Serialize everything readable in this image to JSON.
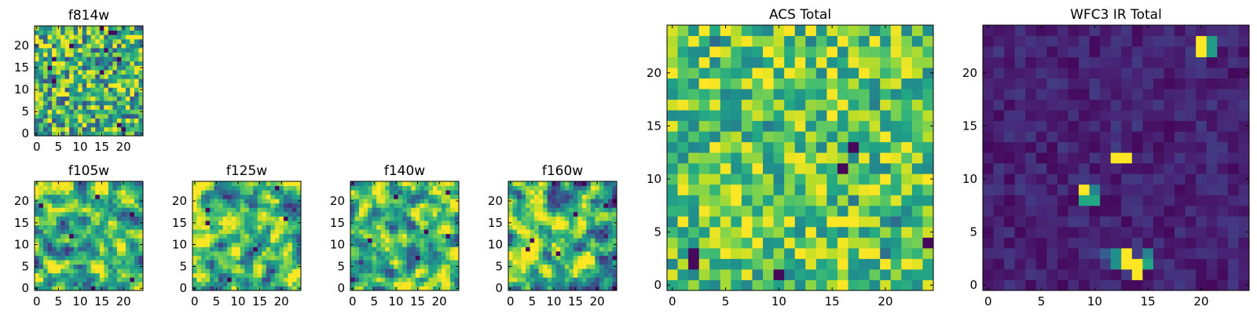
{
  "chart_data": [
    {
      "type": "heatmap",
      "id": "f814w",
      "title": "f814w",
      "shape": [
        25,
        25
      ],
      "colormap": "viridis",
      "pattern": "noise",
      "xlim": [
        -0.5,
        24.5
      ],
      "ylim": [
        -0.5,
        24.5
      ],
      "xticks": [
        0,
        5,
        10,
        15,
        20
      ],
      "yticks": [
        0,
        5,
        10,
        15,
        20
      ],
      "xticklabels": [
        "0",
        "5",
        "10",
        "15",
        "20"
      ],
      "yticklabels": [
        "0",
        "5",
        "10",
        "15",
        "20"
      ],
      "seed": 11
    },
    {
      "type": "heatmap",
      "id": "f105w",
      "title": "f105w",
      "shape": [
        25,
        25
      ],
      "colormap": "viridis",
      "pattern": "smooth_noise",
      "xlim": [
        -0.5,
        24.5
      ],
      "ylim": [
        -0.5,
        24.5
      ],
      "xticks": [
        0,
        5,
        10,
        15,
        20
      ],
      "yticks": [
        0,
        5,
        10,
        15,
        20
      ],
      "xticklabels": [
        "0",
        "5",
        "10",
        "15",
        "20"
      ],
      "yticklabels": [
        "0",
        "5",
        "10",
        "15",
        "20"
      ],
      "seed": 23
    },
    {
      "type": "heatmap",
      "id": "f125w",
      "title": "f125w",
      "shape": [
        25,
        25
      ],
      "colormap": "viridis",
      "pattern": "smooth_noise",
      "xlim": [
        -0.5,
        24.5
      ],
      "ylim": [
        -0.5,
        24.5
      ],
      "xticks": [
        0,
        5,
        10,
        15,
        20
      ],
      "yticks": [
        0,
        5,
        10,
        15,
        20
      ],
      "xticklabels": [
        "0",
        "5",
        "10",
        "15",
        "20"
      ],
      "yticklabels": [
        "0",
        "5",
        "10",
        "15",
        "20"
      ],
      "seed": 37
    },
    {
      "type": "heatmap",
      "id": "f140w",
      "title": "f140w",
      "shape": [
        25,
        25
      ],
      "colormap": "viridis",
      "pattern": "smooth_noise",
      "xlim": [
        -0.5,
        24.5
      ],
      "ylim": [
        -0.5,
        24.5
      ],
      "xticks": [
        0,
        5,
        10,
        15,
        20
      ],
      "yticks": [
        0,
        5,
        10,
        15,
        20
      ],
      "xticklabels": [
        "0",
        "5",
        "10",
        "15",
        "20"
      ],
      "yticklabels": [
        "0",
        "5",
        "10",
        "15",
        "20"
      ],
      "seed": 41
    },
    {
      "type": "heatmap",
      "id": "f160w",
      "title": "f160w",
      "shape": [
        25,
        25
      ],
      "colormap": "viridis",
      "pattern": "smooth_noise",
      "xlim": [
        -0.5,
        24.5
      ],
      "ylim": [
        -0.5,
        24.5
      ],
      "xticks": [
        0,
        5,
        10,
        15,
        20
      ],
      "yticks": [
        0,
        5,
        10,
        15,
        20
      ],
      "xticklabels": [
        "0",
        "5",
        "10",
        "15",
        "20"
      ],
      "yticklabels": [
        "0",
        "5",
        "10",
        "15",
        "20"
      ],
      "seed": 53
    },
    {
      "type": "heatmap",
      "id": "acs-total",
      "title": "ACS Total",
      "shape": [
        25,
        25
      ],
      "colormap": "viridis",
      "pattern": "noise_high",
      "xlim": [
        -0.5,
        24.5
      ],
      "ylim": [
        -0.5,
        24.5
      ],
      "xticks": [
        0,
        5,
        10,
        15,
        20
      ],
      "yticks": [
        0,
        5,
        10,
        15,
        20
      ],
      "xticklabels": [
        "0",
        "5",
        "10",
        "15",
        "20"
      ],
      "yticklabels": [
        "0",
        "5",
        "10",
        "15",
        "20"
      ],
      "seed": 67
    },
    {
      "type": "heatmap",
      "id": "wfc3-ir-total",
      "title": "WFC3 IR Total",
      "shape": [
        25,
        25
      ],
      "colormap": "viridis",
      "pattern": "dark_with_hotspots",
      "xlim": [
        -0.5,
        24.5
      ],
      "ylim": [
        -0.5,
        24.5
      ],
      "xticks": [
        0,
        5,
        10,
        15,
        20
      ],
      "yticks": [
        0,
        5,
        10,
        15,
        20
      ],
      "xticklabels": [
        "0",
        "5",
        "10",
        "15",
        "20"
      ],
      "yticklabels": [
        "0",
        "5",
        "10",
        "15",
        "20"
      ],
      "seed": 79,
      "hotspots": [
        {
          "x": 20,
          "y": 22,
          "value": 1.0
        },
        {
          "x": 20,
          "y": 23,
          "value": 1.0
        },
        {
          "x": 21,
          "y": 22,
          "value": 0.55
        },
        {
          "x": 21,
          "y": 23,
          "value": 0.55
        },
        {
          "x": 12,
          "y": 12,
          "value": 1.0
        },
        {
          "x": 13,
          "y": 12,
          "value": 1.0
        },
        {
          "x": 9,
          "y": 9,
          "value": 1.0
        },
        {
          "x": 9,
          "y": 8,
          "value": 0.6
        },
        {
          "x": 10,
          "y": 8,
          "value": 0.6
        },
        {
          "x": 10,
          "y": 9,
          "value": 0.45
        },
        {
          "x": 13,
          "y": 3,
          "value": 1.0
        },
        {
          "x": 13,
          "y": 2,
          "value": 1.0
        },
        {
          "x": 14,
          "y": 2,
          "value": 1.0
        },
        {
          "x": 14,
          "y": 1,
          "value": 1.0
        },
        {
          "x": 15,
          "y": 2,
          "value": 0.6
        },
        {
          "x": 15,
          "y": 3,
          "value": 0.45
        },
        {
          "x": 12,
          "y": 3,
          "value": 0.5
        },
        {
          "x": 12,
          "y": 2,
          "value": 0.5
        },
        {
          "x": 11,
          "y": 3,
          "value": 0.3
        }
      ]
    }
  ]
}
